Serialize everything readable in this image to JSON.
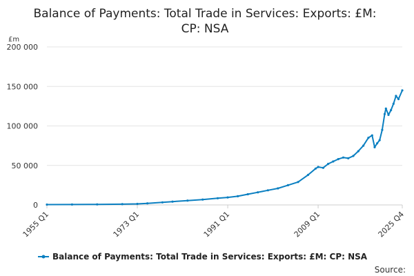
{
  "chart_data": {
    "type": "line",
    "title_line1": "Balance of Payments: Total Trade in Services: Exports: £M:",
    "title_line2": "CP: NSA",
    "unit": "£m",
    "ylim": [
      0,
      200000
    ],
    "y_ticks": [
      {
        "value": 0,
        "label": "0"
      },
      {
        "value": 50000,
        "label": "50 000"
      },
      {
        "value": 100000,
        "label": "100 000"
      },
      {
        "value": 150000,
        "label": "150 000"
      },
      {
        "value": 200000,
        "label": "200 000"
      }
    ],
    "x_range": [
      "1955 Q1",
      "2025 Q4"
    ],
    "x_ticks": [
      "1955 Q1",
      "1973 Q1",
      "1991 Q1",
      "2009 Q1",
      "2025 Q4"
    ],
    "grid": true,
    "legend_position": "bottom",
    "series": [
      {
        "name": "Balance of Payments: Total Trade in Services: Exports: £M: CP: NSA",
        "color": "#0a7fc1",
        "points": [
          [
            "1955 Q1",
            450
          ],
          [
            "1960 Q1",
            560
          ],
          [
            "1965 Q1",
            700
          ],
          [
            "1970 Q1",
            1000
          ],
          [
            "1973 Q1",
            1300
          ],
          [
            "1975 Q1",
            2000
          ],
          [
            "1978 Q1",
            3200
          ],
          [
            "1980 Q1",
            4200
          ],
          [
            "1983 Q1",
            5500
          ],
          [
            "1986 Q1",
            6800
          ],
          [
            "1989 Q1",
            8500
          ],
          [
            "1991 Q1",
            9500
          ],
          [
            "1993 Q1",
            11000
          ],
          [
            "1995 Q1",
            13500
          ],
          [
            "1997 Q1",
            16000
          ],
          [
            "1999 Q1",
            18500
          ],
          [
            "2001 Q1",
            21000
          ],
          [
            "2003 Q1",
            25000
          ],
          [
            "2005 Q1",
            29000
          ],
          [
            "2007 Q1",
            38000
          ],
          [
            "2008 Q3",
            46000
          ],
          [
            "2009 Q1",
            48000
          ],
          [
            "2010 Q1",
            47000
          ],
          [
            "2011 Q1",
            52000
          ],
          [
            "2012 Q1",
            55000
          ],
          [
            "2013 Q1",
            58000
          ],
          [
            "2014 Q1",
            60000
          ],
          [
            "2015 Q1",
            59000
          ],
          [
            "2016 Q1",
            62000
          ],
          [
            "2017 Q1",
            68000
          ],
          [
            "2018 Q1",
            75000
          ],
          [
            "2019 Q1",
            85000
          ],
          [
            "2019 Q4",
            88000
          ],
          [
            "2020 Q2",
            73000
          ],
          [
            "2020 Q4",
            78000
          ],
          [
            "2021 Q2",
            82000
          ],
          [
            "2021 Q4",
            95000
          ],
          [
            "2022 Q2",
            115000
          ],
          [
            "2022 Q3",
            122000
          ],
          [
            "2023 Q1",
            114000
          ],
          [
            "2023 Q3",
            120000
          ],
          [
            "2024 Q1",
            128000
          ],
          [
            "2024 Q3",
            138000
          ],
          [
            "2025 Q1",
            134000
          ],
          [
            "2025 Q4",
            145000
          ]
        ]
      }
    ],
    "source_label": "Source:"
  }
}
